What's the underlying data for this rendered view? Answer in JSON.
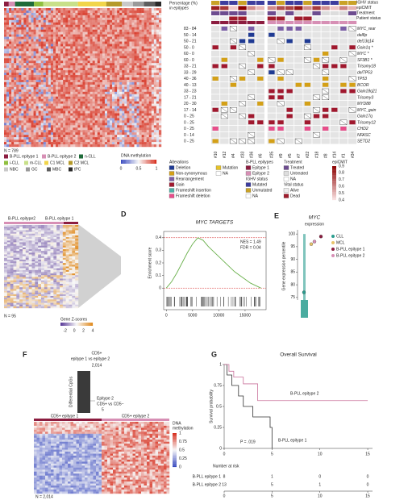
{
  "panel_labels": [
    "D",
    "E",
    "F",
    "G"
  ],
  "panel_a": {
    "n_label": "N = 789",
    "legend": [
      {
        "label": "B-PLL epitype 1",
        "color": "#8c1d40"
      },
      {
        "label": "B-PLL epitype 2",
        "color": "#d78fb5"
      },
      {
        "label": "n-CLL",
        "color": "#1f6b3a"
      },
      {
        "label": "i-CLL",
        "color": "#8fbf3f"
      },
      {
        "label": "m-CLL",
        "color": "#c8e08a"
      },
      {
        "label": "C1 MCL",
        "color": "#f1d54a"
      },
      {
        "label": "C2 MCL",
        "color": "#b59a2a"
      },
      {
        "label": "NBC",
        "color": "#c9c9c9"
      },
      {
        "label": "GC",
        "color": "#9a9a9a"
      },
      {
        "label": "MBC",
        "color": "#5e5e5e"
      },
      {
        "label": "tPC",
        "color": "#2a2a2a"
      }
    ],
    "scale_title": "DNA methylation",
    "scale_ticks": [
      0,
      0.5,
      1
    ]
  },
  "panel_b": {
    "header_labels": [
      "Percentage (%)",
      "in epitypes"
    ],
    "track_labels": [
      "IGHV status",
      "epiCMIT",
      "Treatment",
      "Patient status"
    ],
    "rows": [
      {
        "pct": "83 - 84",
        "gene": "MYC_rear"
      },
      {
        "pct": "50 - 14",
        "gene": "del8p"
      },
      {
        "pct": "50 - 21",
        "gene": "del13q14"
      },
      {
        "pct": "50 - 0",
        "gene": "Gain1q *"
      },
      {
        "pct": "60 - 0",
        "gene": "MYC *"
      },
      {
        "pct": "60 - 0",
        "gene": "SF3B1 *"
      },
      {
        "pct": "33 - 21",
        "gene": "Trisomy18"
      },
      {
        "pct": "33 - 29",
        "gene": "delTP53"
      },
      {
        "pct": "40 - 36",
        "gene": "TP53"
      },
      {
        "pct": "40 - 13",
        "gene": "BCOR"
      },
      {
        "pct": "33 - 23",
        "gene": "Gain18q21"
      },
      {
        "pct": "17 - 21",
        "gene": "Trisomy3"
      },
      {
        "pct": "20 - 30",
        "gene": "MYD88"
      },
      {
        "pct": "17 - 14",
        "gene": "MYC_gain"
      },
      {
        "pct": "0 - 25",
        "gene": "Gain17q"
      },
      {
        "pct": "0 - 25",
        "gene": "Trisomy12"
      },
      {
        "pct": "0 - 25",
        "gene": "CHD2"
      },
      {
        "pct": "0 - 14",
        "gene": "NFASC"
      },
      {
        "pct": "0 - 25",
        "gene": "SETD2"
      }
    ],
    "columns": [
      "#10",
      "#12",
      "#4",
      "#33",
      "#36",
      "#6",
      "#35",
      "#9",
      "#5",
      "#7",
      "#22",
      "#18",
      "#8",
      "#14",
      "#1",
      "#34"
    ],
    "legend": {
      "alterations_title": "Alterations",
      "alterations": [
        {
          "label": "Deletion",
          "color": "#1f3a93"
        },
        {
          "label": "Non-synonymous",
          "color": "#d4a017"
        },
        {
          "label": "Rearrangement",
          "color": "#7b5ea7"
        },
        {
          "label": "Gain",
          "color": "#a0182e"
        },
        {
          "label": "Frameshift insertion",
          "color": "#4fb3a9"
        },
        {
          "label": "Frameshift deletion",
          "color": "#e84d8a"
        }
      ],
      "mutation": [
        {
          "label": "Mutation",
          "color": "#e6c229"
        },
        {
          "label": "NA",
          "color": "#ffffff"
        }
      ],
      "epitypes_title": "B-PLL epitypes",
      "epitypes": [
        {
          "label": "Epitype 1",
          "color": "#8c1d40"
        },
        {
          "label": "Epitype 2",
          "color": "#d78fb5"
        }
      ],
      "ighv_title": "IGHV status",
      "ighv": [
        {
          "label": "Mutated",
          "color": "#3d3d9e"
        },
        {
          "label": "Unmutated",
          "color": "#c9a227"
        },
        {
          "label": "NA",
          "color": "#ffffff"
        }
      ],
      "treatment_title": "Treatment",
      "treatment": [
        {
          "label": "Treated",
          "color": "#6d4c8f"
        },
        {
          "label": "Untreated",
          "color": "#dddddd"
        },
        {
          "label": "NA",
          "color": "#ffffff"
        }
      ],
      "vital_title": "Vital status",
      "vital": [
        {
          "label": "Alive",
          "color": "#eeeeee"
        },
        {
          "label": "Dead",
          "color": "#a01c2c"
        }
      ],
      "epicmit_title": "epiCMIT",
      "epicmit_ticks": [
        0.9,
        0.8,
        0.7,
        0.6,
        0.5,
        0.4
      ]
    }
  },
  "panel_c": {
    "group_labels": [
      "B-PLL epitype2",
      "B-PLL epitype 1"
    ],
    "n_label": "N = 95",
    "scale_title": "Gene Z-scores",
    "scale_ticks": [
      -2,
      0,
      2,
      4
    ]
  },
  "panel_f": {
    "comparison": [
      "CD5+",
      "epitype 1 vs epitype 2"
    ],
    "count_1": "2,014",
    "axis_label": "Differential CpGs",
    "comparison_2": [
      "Epitype 2",
      "CD5+ vs CD5−"
    ],
    "count_2": "5",
    "group_labels": [
      "CD5+ epitype 1",
      "CD5+ epitype 2"
    ],
    "scale_title": [
      "DNA",
      "methylation"
    ],
    "scale_ticks": [
      1,
      0.75,
      0.5,
      0.25,
      0
    ],
    "n_label": "N = 2,014"
  },
  "chart_data": [
    {
      "type": "line",
      "title": "MYC TARGETS",
      "ylabel": "Enrichment score",
      "annotations": [
        "NES = 1.49",
        "FDR = 0.04"
      ],
      "color": "#6ab04c",
      "x": [
        0,
        1000,
        2000,
        3000,
        4000,
        5000,
        6000,
        7000,
        8000,
        9000,
        10000,
        11000,
        12000,
        13000,
        14000,
        15000,
        16000,
        17000,
        18000
      ],
      "values": [
        0,
        0.05,
        0.12,
        0.2,
        0.28,
        0.35,
        0.4,
        0.38,
        0.33,
        0.29,
        0.25,
        0.21,
        0.17,
        0.13,
        0.1,
        0.07,
        0.04,
        0.02,
        0
      ],
      "xlim": [
        -500,
        19000
      ],
      "xticks": [
        0,
        5000,
        10000,
        15000
      ],
      "ylim": [
        -0.05,
        0.45
      ],
      "yticks": [
        0,
        0.1,
        0.2,
        0.3,
        0.4
      ]
    },
    {
      "type": "scatter",
      "title": "MYC",
      "subtitle": "expression",
      "ylabel": "Gene expression percentile",
      "series": [
        {
          "name": "CLL",
          "color": "#2a9d8f",
          "values": [
            77
          ]
        },
        {
          "name": "MCL",
          "color": "#e9c46a",
          "values": [
            96
          ]
        },
        {
          "name": "B-PLL epitype 1",
          "color": "#8c1d40",
          "values": [
            99
          ]
        },
        {
          "name": "B-PLL epitype 2",
          "color": "#d78fb5",
          "values": [
            97
          ]
        }
      ],
      "ylim": [
        74,
        101
      ],
      "yticks": [
        75,
        80,
        85,
        90,
        95,
        100
      ]
    },
    {
      "type": "step",
      "title": "Overall Survival",
      "ylabel": "Survival probability",
      "annotation": "P = .019",
      "series": [
        {
          "name": "B-PLL epitype 1",
          "color": "#333333",
          "x": [
            0,
            0.3,
            0.8,
            1.5,
            2,
            3,
            4.8,
            5
          ],
          "values": [
            1,
            0.875,
            0.75,
            0.625,
            0.5,
            0.375,
            0.25,
            0
          ]
        },
        {
          "name": "B-PLL epitype 2",
          "color": "#c9709a",
          "x": [
            0,
            0.5,
            1,
            2,
            3.5,
            15
          ],
          "values": [
            1,
            0.92,
            0.85,
            0.77,
            0.57,
            0.57
          ]
        }
      ],
      "xlim": [
        0,
        15.5
      ],
      "xticks": [
        0,
        5,
        10,
        15
      ],
      "ylim": [
        0,
        1
      ],
      "yticks": [
        0,
        0.25,
        0.5,
        0.75,
        1
      ],
      "risk_table": {
        "title": "Number at risk",
        "rows": [
          {
            "name": "B-PLL epitype 1",
            "counts": [
              8,
              1,
              0,
              0
            ]
          },
          {
            "name": "B-PLL epitype 2",
            "counts": [
              13,
              5,
              1,
              0
            ]
          }
        ]
      }
    }
  ]
}
